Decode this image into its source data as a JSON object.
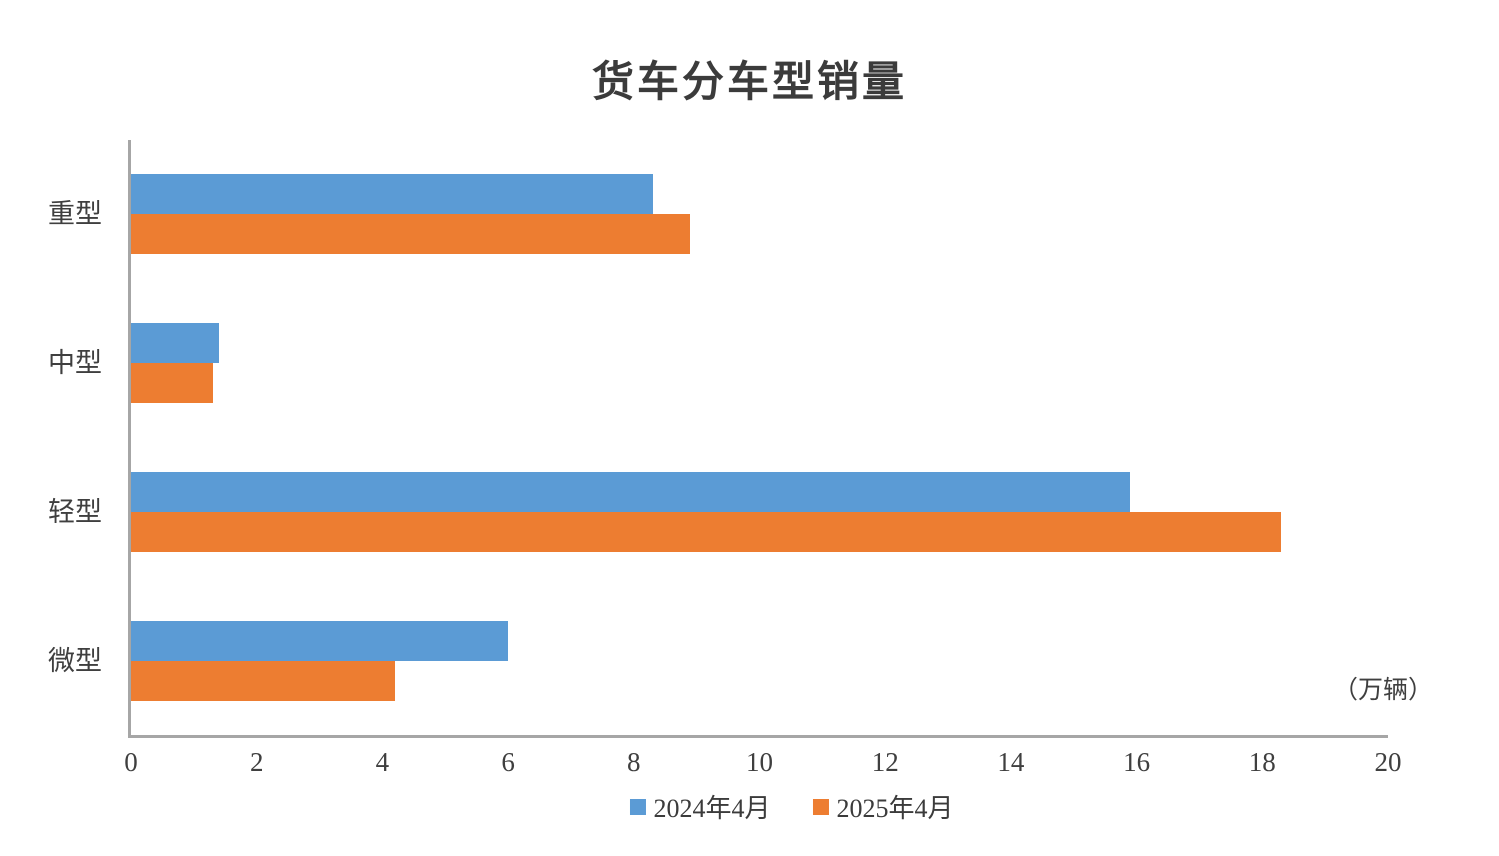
{
  "chart_data": {
    "type": "bar",
    "orientation": "horizontal",
    "title": "货车分车型销量",
    "unit_label": "（万辆）",
    "categories": [
      "重型",
      "中型",
      "轻型",
      "微型"
    ],
    "series": [
      {
        "name": "2024年4月",
        "color": "#5B9BD5",
        "values": [
          8.3,
          1.4,
          15.9,
          6.0
        ]
      },
      {
        "name": "2025年4月",
        "color": "#ED7D31",
        "values": [
          8.9,
          1.3,
          18.3,
          4.2
        ]
      }
    ],
    "xlabel": "（万辆）",
    "xlim": [
      0,
      20
    ],
    "x_ticks": [
      0,
      2,
      4,
      6,
      8,
      10,
      12,
      14,
      16,
      18,
      20
    ],
    "grid": false,
    "legend_position": "bottom",
    "axis_color": "#a6a6a6",
    "text_color": "#3f3f3f",
    "background_color": "#ffffff"
  }
}
